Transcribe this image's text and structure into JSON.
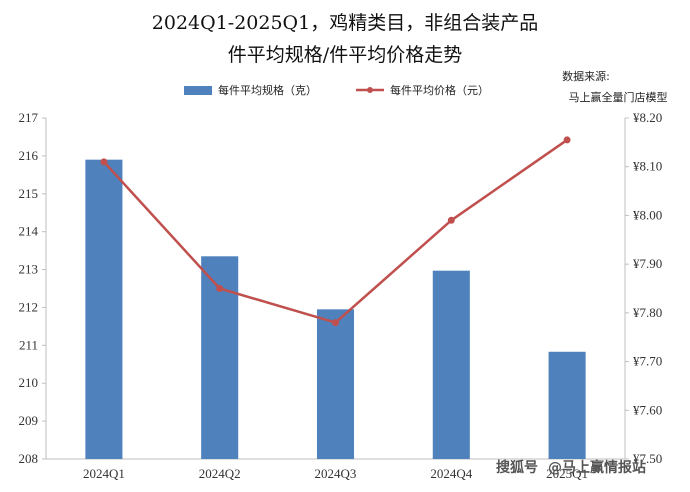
{
  "chart_data": {
    "type": "bar",
    "title_line1": "2024Q1-2025Q1，鸡精类目，非组合装产品",
    "title_line2": "件平均规格/件平均价格走势",
    "source_label": "数据来源:",
    "source_value": "马上赢全量门店模型",
    "categories": [
      "2024Q1",
      "2024Q2",
      "2024Q3",
      "2024Q4",
      "2025Q1"
    ],
    "series": [
      {
        "name": "每件平均规格（克）",
        "type": "bar",
        "axis": "left",
        "color": "#4f81bd",
        "values": [
          215.9,
          213.35,
          211.95,
          212.97,
          210.83
        ]
      },
      {
        "name": "每件平均价格（元）",
        "type": "line",
        "axis": "right",
        "color": "#c0504d",
        "values": [
          8.11,
          7.85,
          7.78,
          7.99,
          8.155
        ]
      }
    ],
    "left_axis": {
      "ylim": [
        208,
        217
      ],
      "ticks": [
        "208",
        "209",
        "210",
        "211",
        "212",
        "213",
        "214",
        "215",
        "216",
        "217"
      ]
    },
    "right_axis": {
      "ylim": [
        7.5,
        8.2
      ],
      "ticks": [
        "¥7.50",
        "¥7.60",
        "¥7.70",
        "¥7.80",
        "¥7.90",
        "¥8.00",
        "¥8.10",
        "¥8.20"
      ]
    },
    "grid": false,
    "legend_position": "top-center"
  },
  "watermark": {
    "brand": "搜狐号",
    "account": "@马上赢情报站"
  }
}
